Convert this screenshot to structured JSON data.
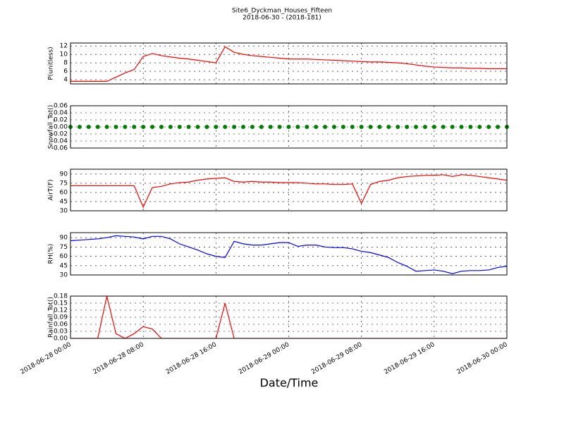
{
  "title": "Site6_Dyckman_Houses_Fifteen",
  "subtitle": "2018-06-30 - (2018-181)",
  "xlabel": "Date/Time",
  "chart_data": [
    {
      "type": "line",
      "ylabel": "P(unitless)",
      "ylim": [
        3,
        12.7
      ],
      "yticks": [
        4,
        6,
        8,
        10,
        12
      ],
      "grid": true,
      "xlim": [
        "2018-06-28 00:00",
        "2018-06-30 00:00"
      ],
      "xticks": [
        "2018-06-28 00:00",
        "2018-06-28 08:00",
        "2018-06-28 16:00",
        "2018-06-29 00:00",
        "2018-06-29 08:00",
        "2018-06-29 16:00",
        "2018-06-30 00:00"
      ],
      "x": [
        "2018-06-28 00:00",
        "2018-06-28 01:00",
        "2018-06-28 02:00",
        "2018-06-28 03:00",
        "2018-06-28 04:00",
        "2018-06-28 05:00",
        "2018-06-28 06:00",
        "2018-06-28 07:00",
        "2018-06-28 08:00",
        "2018-06-28 09:00",
        "2018-06-28 10:00",
        "2018-06-28 11:00",
        "2018-06-28 12:00",
        "2018-06-28 13:00",
        "2018-06-28 14:00",
        "2018-06-28 15:00",
        "2018-06-28 16:00",
        "2018-06-28 17:00",
        "2018-06-28 18:00",
        "2018-06-28 19:00",
        "2018-06-28 20:00",
        "2018-06-28 21:00",
        "2018-06-28 22:00",
        "2018-06-28 23:00",
        "2018-06-29 00:00",
        "2018-06-29 01:00",
        "2018-06-29 02:00",
        "2018-06-29 03:00",
        "2018-06-29 04:00",
        "2018-06-29 05:00",
        "2018-06-29 06:00",
        "2018-06-29 07:00",
        "2018-06-29 08:00",
        "2018-06-29 09:00",
        "2018-06-29 10:00",
        "2018-06-29 11:00",
        "2018-06-29 12:00",
        "2018-06-29 13:00",
        "2018-06-29 14:00",
        "2018-06-29 15:00",
        "2018-06-29 16:00",
        "2018-06-29 17:00",
        "2018-06-29 18:00",
        "2018-06-29 19:00",
        "2018-06-29 20:00",
        "2018-06-29 21:00",
        "2018-06-29 22:00",
        "2018-06-29 23:00",
        "2018-06-30 00:00"
      ],
      "series": [
        {
          "color": "#ff0000",
          "values": [
            3.6,
            3.6,
            3.6,
            3.6,
            3.6,
            4.6,
            5.6,
            6.4,
            9.5,
            10.2,
            9.7,
            9.4,
            9.1,
            8.9,
            8.6,
            8.3,
            8.0,
            11.8,
            10.5,
            10.0,
            9.7,
            9.5,
            9.3,
            9.1,
            8.9,
            8.9,
            8.9,
            8.8,
            8.7,
            8.6,
            8.5,
            8.4,
            8.3,
            8.2,
            8.2,
            8.1,
            8.0,
            7.8,
            7.5,
            7.2,
            7.0,
            6.9,
            6.8,
            6.8,
            6.7,
            6.7,
            6.6,
            6.6,
            6.6
          ]
        }
      ]
    },
    {
      "type": "scatter",
      "ylabel": "Snowfall_Tot()",
      "ylim": [
        -0.06,
        0.06
      ],
      "yticks": [
        -0.06,
        -0.04,
        -0.02,
        {
          "value": 0,
          "label": "0.00"
        },
        0.02,
        0.04,
        0.06
      ],
      "grid": true,
      "xlim": [
        "2018-06-28 00:00",
        "2018-06-30 00:00"
      ],
      "xticks": [
        "2018-06-28 00:00",
        "2018-06-28 08:00",
        "2018-06-28 16:00",
        "2018-06-29 00:00",
        "2018-06-29 08:00",
        "2018-06-29 16:00",
        "2018-06-30 00:00"
      ],
      "x": [
        "2018-06-28 00:00",
        "2018-06-28 01:00",
        "2018-06-28 02:00",
        "2018-06-28 03:00",
        "2018-06-28 04:00",
        "2018-06-28 05:00",
        "2018-06-28 06:00",
        "2018-06-28 07:00",
        "2018-06-28 08:00",
        "2018-06-28 09:00",
        "2018-06-28 10:00",
        "2018-06-28 11:00",
        "2018-06-28 12:00",
        "2018-06-28 13:00",
        "2018-06-28 14:00",
        "2018-06-28 15:00",
        "2018-06-28 16:00",
        "2018-06-28 17:00",
        "2018-06-28 18:00",
        "2018-06-28 19:00",
        "2018-06-28 20:00",
        "2018-06-28 21:00",
        "2018-06-28 22:00",
        "2018-06-28 23:00",
        "2018-06-29 00:00",
        "2018-06-29 01:00",
        "2018-06-29 02:00",
        "2018-06-29 03:00",
        "2018-06-29 04:00",
        "2018-06-29 05:00",
        "2018-06-29 06:00",
        "2018-06-29 07:00",
        "2018-06-29 08:00",
        "2018-06-29 09:00",
        "2018-06-29 10:00",
        "2018-06-29 11:00",
        "2018-06-29 12:00",
        "2018-06-29 13:00",
        "2018-06-29 14:00",
        "2018-06-29 15:00",
        "2018-06-29 16:00",
        "2018-06-29 17:00",
        "2018-06-29 18:00",
        "2018-06-29 19:00",
        "2018-06-29 20:00",
        "2018-06-29 21:00",
        "2018-06-29 22:00",
        "2018-06-29 23:00",
        "2018-06-30 00:00"
      ],
      "series": [
        {
          "color": "#008000",
          "values": [
            0,
            0,
            0,
            0,
            0,
            0,
            0,
            0,
            0,
            0,
            0,
            0,
            0,
            0,
            0,
            0,
            0,
            0,
            0,
            0,
            0,
            0,
            0,
            0,
            0,
            0,
            0,
            0,
            0,
            0,
            0,
            0,
            0,
            0,
            0,
            0,
            0,
            0,
            0,
            0,
            0,
            0,
            0,
            0,
            0,
            0,
            0,
            0,
            0
          ]
        }
      ]
    },
    {
      "type": "line",
      "ylabel": "AirT(F)",
      "ylim": [
        30,
        98
      ],
      "yticks": [
        30,
        45,
        60,
        75,
        90
      ],
      "grid": true,
      "xlim": [
        "2018-06-28 00:00",
        "2018-06-30 00:00"
      ],
      "xticks": [
        "2018-06-28 00:00",
        "2018-06-28 08:00",
        "2018-06-28 16:00",
        "2018-06-29 00:00",
        "2018-06-29 08:00",
        "2018-06-29 16:00",
        "2018-06-30 00:00"
      ],
      "x": [
        "2018-06-28 00:00",
        "2018-06-28 01:00",
        "2018-06-28 02:00",
        "2018-06-28 03:00",
        "2018-06-28 04:00",
        "2018-06-28 05:00",
        "2018-06-28 06:00",
        "2018-06-28 07:00",
        "2018-06-28 08:00",
        "2018-06-28 09:00",
        "2018-06-28 10:00",
        "2018-06-28 11:00",
        "2018-06-28 12:00",
        "2018-06-28 13:00",
        "2018-06-28 14:00",
        "2018-06-28 15:00",
        "2018-06-28 16:00",
        "2018-06-28 17:00",
        "2018-06-28 18:00",
        "2018-06-28 19:00",
        "2018-06-28 20:00",
        "2018-06-28 21:00",
        "2018-06-28 22:00",
        "2018-06-28 23:00",
        "2018-06-29 00:00",
        "2018-06-29 01:00",
        "2018-06-29 02:00",
        "2018-06-29 03:00",
        "2018-06-29 04:00",
        "2018-06-29 05:00",
        "2018-06-29 06:00",
        "2018-06-29 07:00",
        "2018-06-29 08:00",
        "2018-06-29 09:00",
        "2018-06-29 10:00",
        "2018-06-29 11:00",
        "2018-06-29 12:00",
        "2018-06-29 13:00",
        "2018-06-29 14:00",
        "2018-06-29 15:00",
        "2018-06-29 16:00",
        "2018-06-29 17:00",
        "2018-06-29 18:00",
        "2018-06-29 19:00",
        "2018-06-29 20:00",
        "2018-06-29 21:00",
        "2018-06-29 22:00",
        "2018-06-29 23:00",
        "2018-06-30 00:00"
      ],
      "series": [
        {
          "color": "#ff0000",
          "values": [
            71,
            71,
            71,
            71,
            71,
            71,
            71,
            71,
            36,
            68,
            70,
            74,
            76,
            77,
            80,
            82,
            83,
            84,
            78,
            77,
            78,
            77,
            77,
            76,
            76,
            76,
            75,
            74,
            74,
            73,
            73,
            74,
            42,
            73,
            78,
            80,
            84,
            86,
            87,
            88,
            88,
            89,
            86,
            89,
            88,
            86,
            84,
            82,
            80
          ]
        }
      ]
    },
    {
      "type": "line",
      "ylabel": "RH(%)",
      "ylim": [
        30,
        98
      ],
      "yticks": [
        30,
        45,
        60,
        75,
        90
      ],
      "grid": true,
      "xlim": [
        "2018-06-28 00:00",
        "2018-06-30 00:00"
      ],
      "xticks": [
        "2018-06-28 00:00",
        "2018-06-28 08:00",
        "2018-06-28 16:00",
        "2018-06-29 00:00",
        "2018-06-29 08:00",
        "2018-06-29 16:00",
        "2018-06-30 00:00"
      ],
      "x": [
        "2018-06-28 00:00",
        "2018-06-28 01:00",
        "2018-06-28 02:00",
        "2018-06-28 03:00",
        "2018-06-28 04:00",
        "2018-06-28 05:00",
        "2018-06-28 06:00",
        "2018-06-28 07:00",
        "2018-06-28 08:00",
        "2018-06-28 09:00",
        "2018-06-28 10:00",
        "2018-06-28 11:00",
        "2018-06-28 12:00",
        "2018-06-28 13:00",
        "2018-06-28 14:00",
        "2018-06-28 15:00",
        "2018-06-28 16:00",
        "2018-06-28 17:00",
        "2018-06-28 18:00",
        "2018-06-28 19:00",
        "2018-06-28 20:00",
        "2018-06-28 21:00",
        "2018-06-28 22:00",
        "2018-06-28 23:00",
        "2018-06-29 00:00",
        "2018-06-29 01:00",
        "2018-06-29 02:00",
        "2018-06-29 03:00",
        "2018-06-29 04:00",
        "2018-06-29 05:00",
        "2018-06-29 06:00",
        "2018-06-29 07:00",
        "2018-06-29 08:00",
        "2018-06-29 09:00",
        "2018-06-29 10:00",
        "2018-06-29 11:00",
        "2018-06-29 12:00",
        "2018-06-29 13:00",
        "2018-06-29 14:00",
        "2018-06-29 15:00",
        "2018-06-29 16:00",
        "2018-06-29 17:00",
        "2018-06-29 18:00",
        "2018-06-29 19:00",
        "2018-06-29 20:00",
        "2018-06-29 21:00",
        "2018-06-29 22:00",
        "2018-06-29 23:00",
        "2018-06-30 00:00"
      ],
      "series": [
        {
          "color": "#0000ff",
          "values": [
            85,
            86,
            87,
            88,
            90,
            93,
            92,
            91,
            88,
            92,
            92,
            88,
            80,
            75,
            70,
            64,
            60,
            58,
            84,
            80,
            78,
            78,
            80,
            82,
            82,
            76,
            78,
            78,
            75,
            74,
            74,
            72,
            68,
            66,
            62,
            58,
            50,
            44,
            36,
            37,
            38,
            36,
            32,
            36,
            37,
            37,
            38,
            42,
            44
          ]
        }
      ]
    },
    {
      "type": "line",
      "ylabel": "Rainfall_Tot()",
      "ylim": [
        0,
        0.18
      ],
      "yticks": [
        {
          "value": 0,
          "label": "0.00"
        },
        0.03,
        0.06,
        0.09,
        0.12,
        0.15,
        0.18
      ],
      "grid": true,
      "xlim": [
        "2018-06-28 00:00",
        "2018-06-30 00:00"
      ],
      "xticks": [
        "2018-06-28 00:00",
        "2018-06-28 08:00",
        "2018-06-28 16:00",
        "2018-06-29 00:00",
        "2018-06-29 08:00",
        "2018-06-29 16:00",
        "2018-06-30 00:00"
      ],
      "x": [
        "2018-06-28 00:00",
        "2018-06-28 01:00",
        "2018-06-28 02:00",
        "2018-06-28 03:00",
        "2018-06-28 04:00",
        "2018-06-28 05:00",
        "2018-06-28 06:00",
        "2018-06-28 07:00",
        "2018-06-28 08:00",
        "2018-06-28 09:00",
        "2018-06-28 10:00",
        "2018-06-28 11:00",
        "2018-06-28 12:00",
        "2018-06-28 13:00",
        "2018-06-28 14:00",
        "2018-06-28 15:00",
        "2018-06-28 16:00",
        "2018-06-28 17:00",
        "2018-06-28 18:00",
        "2018-06-28 19:00",
        "2018-06-28 20:00",
        "2018-06-28 21:00",
        "2018-06-28 22:00",
        "2018-06-28 23:00",
        "2018-06-29 00:00",
        "2018-06-29 01:00",
        "2018-06-29 02:00",
        "2018-06-29 03:00",
        "2018-06-29 04:00",
        "2018-06-29 05:00",
        "2018-06-29 06:00",
        "2018-06-29 07:00",
        "2018-06-29 08:00",
        "2018-06-29 09:00",
        "2018-06-29 10:00",
        "2018-06-29 11:00",
        "2018-06-29 12:00",
        "2018-06-29 13:00",
        "2018-06-29 14:00",
        "2018-06-29 15:00",
        "2018-06-29 16:00",
        "2018-06-29 17:00",
        "2018-06-29 18:00",
        "2018-06-29 19:00",
        "2018-06-29 20:00",
        "2018-06-29 21:00",
        "2018-06-29 22:00",
        "2018-06-29 23:00",
        "2018-06-30 00:00"
      ],
      "series": [
        {
          "color": "#ff0000",
          "values": [
            0,
            0,
            0,
            0,
            0.18,
            0.02,
            0,
            0.02,
            0.05,
            0.04,
            0,
            0,
            0,
            0,
            0,
            0,
            0,
            0.15,
            0,
            0,
            0,
            0,
            0,
            0,
            0,
            0,
            0,
            0,
            0,
            0,
            0,
            0,
            0,
            0,
            0,
            0,
            0,
            0,
            0,
            0,
            0,
            0,
            0,
            0,
            0,
            0,
            0,
            0,
            0
          ]
        }
      ]
    }
  ]
}
